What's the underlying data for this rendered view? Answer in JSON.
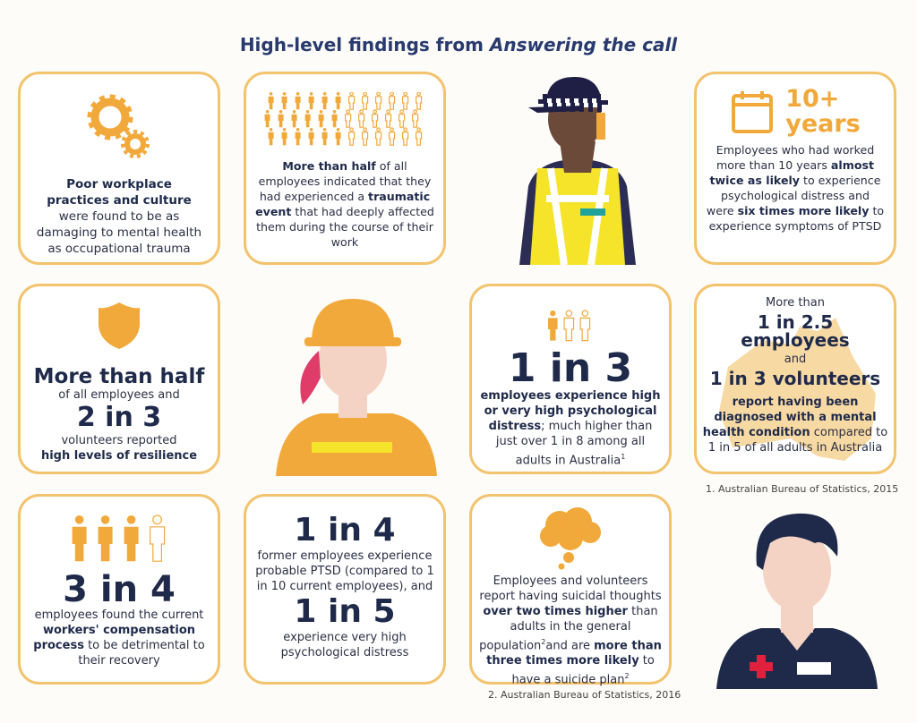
{
  "title": {
    "prefix": "High-level findings from ",
    "italic": "Answering the call"
  },
  "colors": {
    "accent": "#f2a93b",
    "border": "#f3c36e",
    "navy": "#1f2a4a",
    "background": "#fdfcf8"
  },
  "cards": {
    "workplace": {
      "icon": "gears-icon",
      "bold": "Poor workplace practices and culture",
      "text": " were found to be as damaging to mental health as occupational trauma"
    },
    "trauma": {
      "icon": "people-grid-icon",
      "bold1": "More than half",
      "text1": " of all employees indicated that they had experienced a ",
      "bold2": "traumatic event",
      "text2": " that had deeply affected them during the course of their work"
    },
    "years": {
      "icon": "calendar-icon",
      "stat1": "10+",
      "stat2": "years",
      "text1": "Employees who had worked more than 10 years ",
      "bold1": "almost twice as likely",
      "text2": " to experience psychological distress and were ",
      "bold2": "six times more likely",
      "text3": " to experience symptoms of PTSD"
    },
    "resilience": {
      "icon": "shield-icon",
      "stat1": "More than half",
      "text1": "of all employees and",
      "stat2": "2 in 3",
      "text2": "volunteers reported",
      "bold": "high levels of resilience"
    },
    "distress": {
      "icon": "people-1-of-3-icon",
      "stat": "1 in 3",
      "bold": "employees experience high or very high psychological distress",
      "text": "; much higher than just over 1 in 8 among all adults in Australia",
      "sup": "1"
    },
    "diagnosed": {
      "icon": "australia-map-icon",
      "pre": "More than",
      "stat1": "1 in 2.5 employees",
      "mid": "and",
      "stat2": "1 in 3 volunteers",
      "bold": "report having been diagnosed with a mental health condition",
      "text": " compared to 1 in 5 of all adults in Australia"
    },
    "compensation": {
      "icon": "people-3-of-4-icon",
      "stat": "3 in 4",
      "text1": "employees found the current ",
      "bold": "workers' compensation process",
      "text2": " to be detrimental to their recovery"
    },
    "ptsd": {
      "stat1": "1 in 4",
      "text1": "former employees experience probable PTSD (compared to 1 in 10 current employees), and",
      "stat2": "1 in 5",
      "text2": "experience very high psychological distress"
    },
    "suicide": {
      "icon": "thought-cloud-icon",
      "text1": "Employees and volunteers report having suicidal thoughts ",
      "bold1": "over two times higher",
      "text2": " than adults in the general population",
      "sup1": "2",
      "text3": "and are ",
      "bold2": "more than three times more likely",
      "text4": " to have a suicide plan",
      "sup2": "2"
    }
  },
  "footnotes": [
    "1. Australian Bureau of Statistics, 2015",
    "2. Australian Bureau of Statistics, 2016"
  ],
  "illustrations": [
    "police-officer-illustration",
    "firefighter-illustration",
    "paramedic-illustration"
  ]
}
